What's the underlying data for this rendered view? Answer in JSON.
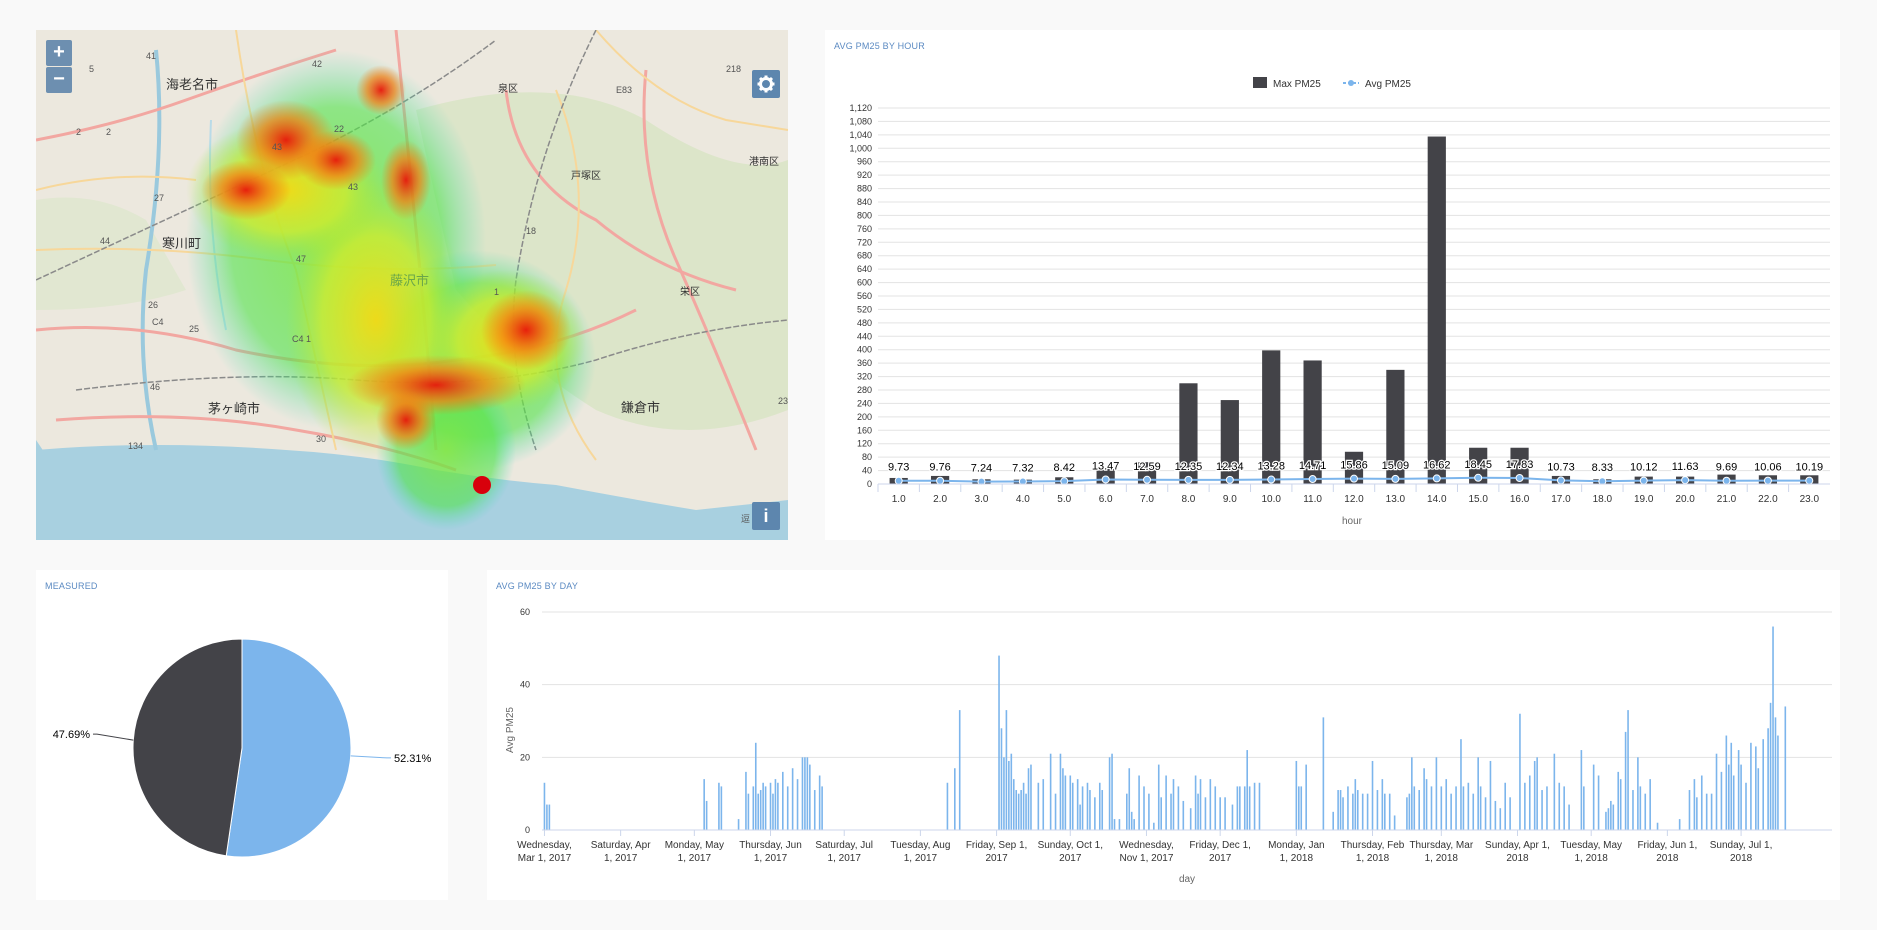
{
  "map": {
    "zoom_in_label": "+",
    "zoom_out_label": "−",
    "settings_icon": "gear-icon",
    "info_icon": "info-icon",
    "info_label": "i",
    "place_labels": [
      "海老名市",
      "泉区",
      "戸塚区",
      "港南区",
      "寒川町",
      "藤沢市",
      "栄区",
      "茅ヶ崎市",
      "鎌倉市"
    ],
    "road_labels": [
      "41",
      "5",
      "42",
      "218",
      "E83",
      "2",
      "2",
      "43",
      "22",
      "43",
      "27",
      "18",
      "44",
      "47",
      "1",
      "26",
      "C4",
      "25",
      "C4\n1",
      "46",
      "30",
      "134",
      "23",
      "逗"
    ],
    "colors": {
      "water": "#a8d0e0",
      "land": "#eae6dc",
      "green": "#cde0b5",
      "heat_hot": "#e8160a",
      "heat_mid": "#fdf20d",
      "heat_cool": "#4fe34a"
    }
  },
  "hour_chart": {
    "title": "AVG PM25 BY HOUR",
    "legend": {
      "bar": "Max PM25",
      "line": "Avg PM25"
    },
    "xlabel": "hour",
    "colors": {
      "bar": "#434348",
      "line": "#7cb5ec"
    }
  },
  "pie_chart": {
    "title": "MEASURED",
    "colors": [
      "#434348",
      "#7cb5ec"
    ]
  },
  "day_chart": {
    "title": "AVG PM25 BY DAY",
    "xlabel": "day",
    "ylabel": "Avg PM25",
    "color": "#7cb5ec"
  },
  "chart_data": [
    {
      "type": "bar",
      "title": "AVG PM25 BY HOUR",
      "xlabel": "hour",
      "ylabel": "",
      "ylim": [
        0,
        1120
      ],
      "yticks": [
        0,
        40,
        80,
        120,
        160,
        200,
        240,
        280,
        320,
        360,
        400,
        440,
        480,
        520,
        560,
        600,
        640,
        680,
        720,
        760,
        800,
        840,
        880,
        920,
        960,
        1000,
        1040,
        1080,
        1120
      ],
      "categories": [
        "1.0",
        "2.0",
        "3.0",
        "4.0",
        "5.0",
        "6.0",
        "7.0",
        "8.0",
        "9.0",
        "10.0",
        "11.0",
        "12.0",
        "13.0",
        "14.0",
        "15.0",
        "16.0",
        "17.0",
        "18.0",
        "19.0",
        "20.0",
        "21.0",
        "22.0",
        "23.0"
      ],
      "series": [
        {
          "name": "Max PM25",
          "type": "bar",
          "values": [
            18,
            24,
            14,
            13,
            20,
            48,
            65,
            300,
            250,
            398,
            368,
            96,
            340,
            1035,
            108,
            108,
            24,
            14,
            22,
            22,
            28,
            26,
            26
          ]
        },
        {
          "name": "Avg PM25",
          "type": "line",
          "values": [
            9.73,
            9.76,
            7.24,
            7.32,
            8.42,
            13.47,
            12.59,
            12.35,
            12.34,
            13.28,
            14.71,
            15.86,
            15.09,
            16.62,
            18.45,
            17.83,
            10.73,
            8.33,
            10.12,
            11.63,
            9.69,
            10.06,
            10.19
          ],
          "labels": [
            "9.73",
            "9.76",
            "7.24",
            "7.32",
            "8.42",
            "13.47",
            "12.59",
            "12.35",
            "12.34",
            "13.28",
            "14.71",
            "15.86",
            "15.09",
            "16.62",
            "18.45",
            "17.83",
            "10.73",
            "8.33",
            "10.12",
            "11.63",
            "9.69",
            "10.06",
            "10.19"
          ]
        }
      ],
      "legend": "top-center",
      "grid": true
    },
    {
      "type": "pie",
      "title": "MEASURED",
      "slices": [
        {
          "value": 47.69,
          "label": "47.69%"
        },
        {
          "value": 52.31,
          "label": "52.31%"
        }
      ]
    },
    {
      "type": "bar",
      "title": "AVG PM25 BY DAY",
      "xlabel": "day",
      "ylabel": "Avg PM25",
      "ylim": [
        0,
        60
      ],
      "yticks": [
        0,
        20,
        40,
        60
      ],
      "x_range": [
        "2017-02-28",
        "2018-08-07"
      ],
      "tick_dates": [
        "2017-03-01",
        "2017-04-01",
        "2017-05-01",
        "2017-06-01",
        "2017-07-01",
        "2017-08-01",
        "2017-09-01",
        "2017-10-01",
        "2017-11-01",
        "2017-12-01",
        "2018-01-01",
        "2018-02-01",
        "2018-03-01",
        "2018-04-01",
        "2018-05-01",
        "2018-06-01",
        "2018-07-01"
      ],
      "tick_labels": [
        [
          "Wednesday,",
          "Mar 1, 2017"
        ],
        [
          "Saturday, Apr",
          "1, 2017"
        ],
        [
          "Monday, May",
          "1, 2017"
        ],
        [
          "Thursday, Jun",
          "1, 2017"
        ],
        [
          "Saturday, Jul",
          "1, 2017"
        ],
        [
          "Tuesday, Aug",
          "1, 2017"
        ],
        [
          "Friday, Sep 1,",
          "2017"
        ],
        [
          "Sunday, Oct 1,",
          "2017"
        ],
        [
          "Wednesday,",
          "Nov 1, 2017"
        ],
        [
          "Friday, Dec 1,",
          "2017"
        ],
        [
          "Monday, Jan",
          "1, 2018"
        ],
        [
          "Thursday, Feb",
          "1, 2018"
        ],
        [
          "Thursday, Mar",
          "1, 2018"
        ],
        [
          "Sunday, Apr 1,",
          "2018"
        ],
        [
          "Tuesday, May",
          "1, 2018"
        ],
        [
          "Friday, Jun 1,",
          "2018"
        ],
        [
          "Sunday, Jul 1,",
          "2018"
        ]
      ],
      "points": [
        [
          "2017-03-01",
          13
        ],
        [
          "2017-03-02",
          7
        ],
        [
          "2017-03-03",
          7
        ],
        [
          "2017-05-05",
          14
        ],
        [
          "2017-05-06",
          8
        ],
        [
          "2017-05-11",
          13
        ],
        [
          "2017-05-12",
          12
        ],
        [
          "2017-05-19",
          3
        ],
        [
          "2017-05-22",
          16
        ],
        [
          "2017-05-23",
          10
        ],
        [
          "2017-05-25",
          12
        ],
        [
          "2017-05-26",
          24
        ],
        [
          "2017-05-27",
          10
        ],
        [
          "2017-05-28",
          11
        ],
        [
          "2017-05-29",
          13
        ],
        [
          "2017-05-30",
          12
        ],
        [
          "2017-06-01",
          13
        ],
        [
          "2017-06-02",
          10
        ],
        [
          "2017-06-03",
          14
        ],
        [
          "2017-06-04",
          13
        ],
        [
          "2017-06-06",
          16
        ],
        [
          "2017-06-08",
          12
        ],
        [
          "2017-06-10",
          17
        ],
        [
          "2017-06-12",
          14
        ],
        [
          "2017-06-14",
          20
        ],
        [
          "2017-06-15",
          20
        ],
        [
          "2017-06-16",
          20
        ],
        [
          "2017-06-17",
          18
        ],
        [
          "2017-06-19",
          11
        ],
        [
          "2017-06-21",
          15
        ],
        [
          "2017-06-22",
          12
        ],
        [
          "2017-08-12",
          13
        ],
        [
          "2017-08-15",
          17
        ],
        [
          "2017-08-17",
          33
        ],
        [
          "2017-09-02",
          48
        ],
        [
          "2017-09-03",
          28
        ],
        [
          "2017-09-04",
          20
        ],
        [
          "2017-09-05",
          33
        ],
        [
          "2017-09-06",
          19
        ],
        [
          "2017-09-07",
          21
        ],
        [
          "2017-09-08",
          14
        ],
        [
          "2017-09-09",
          11
        ],
        [
          "2017-09-10",
          10
        ],
        [
          "2017-09-11",
          11
        ],
        [
          "2017-09-12",
          13
        ],
        [
          "2017-09-13",
          10
        ],
        [
          "2017-09-14",
          17
        ],
        [
          "2017-09-15",
          18
        ],
        [
          "2017-09-18",
          13
        ],
        [
          "2017-09-20",
          14
        ],
        [
          "2017-09-23",
          21
        ],
        [
          "2017-09-25",
          10
        ],
        [
          "2017-09-27",
          21
        ],
        [
          "2017-09-28",
          17
        ],
        [
          "2017-09-29",
          15
        ],
        [
          "2017-10-01",
          15
        ],
        [
          "2017-10-02",
          13
        ],
        [
          "2017-10-04",
          14
        ],
        [
          "2017-10-05",
          7
        ],
        [
          "2017-10-06",
          12
        ],
        [
          "2017-10-08",
          13
        ],
        [
          "2017-10-09",
          11
        ],
        [
          "2017-10-11",
          9
        ],
        [
          "2017-10-13",
          13
        ],
        [
          "2017-10-14",
          11
        ],
        [
          "2017-10-17",
          20
        ],
        [
          "2017-10-18",
          21
        ],
        [
          "2017-10-19",
          3
        ],
        [
          "2017-10-21",
          3
        ],
        [
          "2017-10-24",
          10
        ],
        [
          "2017-10-25",
          17
        ],
        [
          "2017-10-26",
          5
        ],
        [
          "2017-10-27",
          3
        ],
        [
          "2017-10-29",
          15
        ],
        [
          "2017-10-31",
          12
        ],
        [
          "2017-11-02",
          10
        ],
        [
          "2017-11-04",
          2
        ],
        [
          "2017-11-06",
          18
        ],
        [
          "2017-11-07",
          9
        ],
        [
          "2017-11-09",
          15
        ],
        [
          "2017-11-11",
          10
        ],
        [
          "2017-11-12",
          14
        ],
        [
          "2017-11-14",
          12
        ],
        [
          "2017-11-16",
          8
        ],
        [
          "2017-11-19",
          6
        ],
        [
          "2017-11-21",
          15
        ],
        [
          "2017-11-22",
          10
        ],
        [
          "2017-11-23",
          14
        ],
        [
          "2017-11-25",
          9
        ],
        [
          "2017-11-27",
          14
        ],
        [
          "2017-11-29",
          12
        ],
        [
          "2017-12-01",
          9
        ],
        [
          "2017-12-03",
          9
        ],
        [
          "2017-12-06",
          7
        ],
        [
          "2017-12-08",
          12
        ],
        [
          "2017-12-09",
          12
        ],
        [
          "2017-12-11",
          12
        ],
        [
          "2017-12-12",
          22
        ],
        [
          "2017-12-13",
          12
        ],
        [
          "2017-12-15",
          13
        ],
        [
          "2017-12-17",
          13
        ],
        [
          "2018-01-01",
          19
        ],
        [
          "2018-01-02",
          12
        ],
        [
          "2018-01-03",
          12
        ],
        [
          "2018-01-05",
          18
        ],
        [
          "2018-01-12",
          31
        ],
        [
          "2018-01-16",
          5
        ],
        [
          "2018-01-18",
          11
        ],
        [
          "2018-01-19",
          11
        ],
        [
          "2018-01-20",
          9
        ],
        [
          "2018-01-22",
          12
        ],
        [
          "2018-01-24",
          10
        ],
        [
          "2018-01-25",
          14
        ],
        [
          "2018-01-26",
          11
        ],
        [
          "2018-01-28",
          10
        ],
        [
          "2018-01-30",
          10
        ],
        [
          "2018-02-01",
          19
        ],
        [
          "2018-02-03",
          11
        ],
        [
          "2018-02-05",
          14
        ],
        [
          "2018-02-06",
          10
        ],
        [
          "2018-02-08",
          10
        ],
        [
          "2018-02-10",
          4
        ],
        [
          "2018-02-15",
          9
        ],
        [
          "2018-02-16",
          10
        ],
        [
          "2018-02-17",
          20
        ],
        [
          "2018-02-18",
          12
        ],
        [
          "2018-02-20",
          11
        ],
        [
          "2018-02-22",
          17
        ],
        [
          "2018-02-23",
          14
        ],
        [
          "2018-02-25",
          12
        ],
        [
          "2018-02-27",
          20
        ],
        [
          "2018-03-01",
          12
        ],
        [
          "2018-03-03",
          14
        ],
        [
          "2018-03-05",
          10
        ],
        [
          "2018-03-07",
          12
        ],
        [
          "2018-03-09",
          25
        ],
        [
          "2018-03-10",
          12
        ],
        [
          "2018-03-12",
          13
        ],
        [
          "2018-03-14",
          10
        ],
        [
          "2018-03-16",
          20
        ],
        [
          "2018-03-17",
          12
        ],
        [
          "2018-03-19",
          9
        ],
        [
          "2018-03-21",
          19
        ],
        [
          "2018-03-23",
          8
        ],
        [
          "2018-03-25",
          6
        ],
        [
          "2018-03-27",
          13
        ],
        [
          "2018-03-29",
          9
        ],
        [
          "2018-04-02",
          32
        ],
        [
          "2018-04-04",
          13
        ],
        [
          "2018-04-06",
          15
        ],
        [
          "2018-04-08",
          19
        ],
        [
          "2018-04-09",
          20
        ],
        [
          "2018-04-11",
          11
        ],
        [
          "2018-04-13",
          12
        ],
        [
          "2018-04-16",
          21
        ],
        [
          "2018-04-18",
          13
        ],
        [
          "2018-04-20",
          12
        ],
        [
          "2018-04-22",
          7
        ],
        [
          "2018-04-27",
          22
        ],
        [
          "2018-04-28",
          12
        ],
        [
          "2018-05-02",
          18
        ],
        [
          "2018-05-04",
          15
        ],
        [
          "2018-05-07",
          5
        ],
        [
          "2018-05-08",
          6
        ],
        [
          "2018-05-09",
          8
        ],
        [
          "2018-05-10",
          7
        ],
        [
          "2018-05-12",
          16
        ],
        [
          "2018-05-13",
          14
        ],
        [
          "2018-05-15",
          27
        ],
        [
          "2018-05-16",
          33
        ],
        [
          "2018-05-18",
          11
        ],
        [
          "2018-05-20",
          20
        ],
        [
          "2018-05-21",
          12
        ],
        [
          "2018-05-23",
          10
        ],
        [
          "2018-05-25",
          14
        ],
        [
          "2018-05-28",
          2
        ],
        [
          "2018-06-06",
          3
        ],
        [
          "2018-06-10",
          11
        ],
        [
          "2018-06-12",
          14
        ],
        [
          "2018-06-13",
          9
        ],
        [
          "2018-06-15",
          15
        ],
        [
          "2018-06-17",
          10
        ],
        [
          "2018-06-19",
          10
        ],
        [
          "2018-06-21",
          21
        ],
        [
          "2018-06-23",
          16
        ],
        [
          "2018-06-25",
          26
        ],
        [
          "2018-06-26",
          18
        ],
        [
          "2018-06-27",
          24
        ],
        [
          "2018-06-28",
          15
        ],
        [
          "2018-06-30",
          22
        ],
        [
          "2018-07-01",
          18
        ],
        [
          "2018-07-03",
          13
        ],
        [
          "2018-07-05",
          24
        ],
        [
          "2018-07-07",
          23
        ],
        [
          "2018-07-08",
          17
        ],
        [
          "2018-07-10",
          25
        ],
        [
          "2018-07-12",
          28
        ],
        [
          "2018-07-13",
          35
        ],
        [
          "2018-07-14",
          56
        ],
        [
          "2018-07-15",
          31
        ],
        [
          "2018-07-16",
          26
        ],
        [
          "2018-07-19",
          34
        ]
      ],
      "grid": true
    }
  ]
}
